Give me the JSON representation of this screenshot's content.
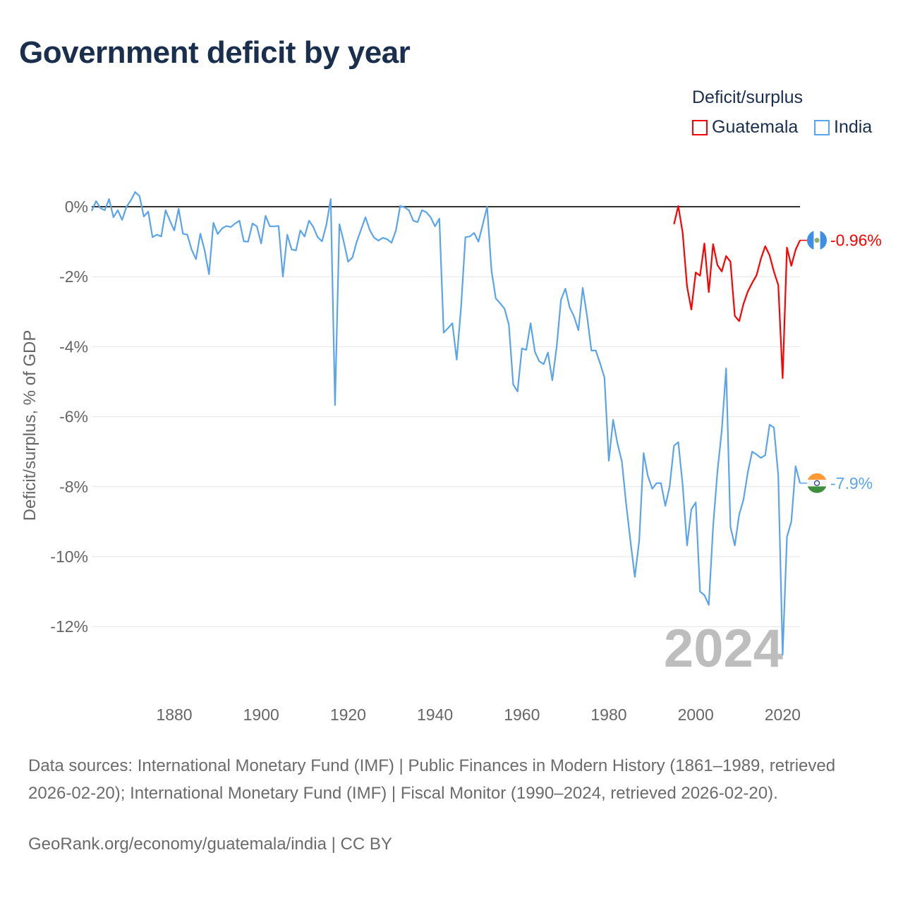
{
  "title": "Government deficit by year",
  "legend": {
    "title": "Deficit/surplus",
    "items": [
      {
        "name": "Guatemala",
        "color": "#ff0000"
      },
      {
        "name": "India",
        "color": "#5ba4ec"
      }
    ]
  },
  "footer": {
    "sources": "Data sources: International Monetary Fund (IMF) | Public Finances in Modern History (1861–1989, retrieved 2026-02-20); International Monetary Fund (IMF) | Fiscal Monitor (1990–2024, retrieved 2026-02-20).",
    "credit": "GeoRank.org/economy/guatemala/india | CC BY"
  },
  "chart_data": {
    "type": "line",
    "title": "Government deficit by year",
    "xlabel": "",
    "ylabel": "Deficit/surplus, % of GDP",
    "xlim": [
      1861,
      2024
    ],
    "ylim": [
      -13,
      0.5
    ],
    "grid": true,
    "legend_position": "top-right",
    "year_label": "2024",
    "x_ticks": [
      1880,
      1900,
      1920,
      1940,
      1960,
      1980,
      2000,
      2020
    ],
    "x_tick_labels": [
      "1880",
      "1900",
      "1920",
      "1940",
      "1960",
      "1980",
      "2000",
      "2020"
    ],
    "y_ticks": [
      0,
      -2,
      -4,
      -6,
      -8,
      -10,
      -12
    ],
    "y_tick_labels": [
      "0%",
      "-2%",
      "-4%",
      "-6%",
      "-8%",
      "-10%",
      "-12%"
    ],
    "series": [
      {
        "name": "Guatemala",
        "color": "#ff0000",
        "end_label": "-0.96%",
        "start_year": 1995,
        "values": [
          -0.5,
          0.02,
          -0.75,
          -2.28,
          -2.94,
          -1.88,
          -1.97,
          -1.05,
          -2.44,
          -1.07,
          -1.67,
          -1.85,
          -1.41,
          -1.57,
          -3.12,
          -3.27,
          -2.78,
          -2.42,
          -2.18,
          -1.96,
          -1.49,
          -1.13,
          -1.39,
          -1.85,
          -2.24,
          -4.9,
          -1.17,
          -1.69,
          -1.23,
          -0.96
        ]
      },
      {
        "name": "India",
        "color": "#5ba4ec",
        "end_label": "-7.9%",
        "start_year": 1861,
        "values": [
          -0.12,
          0.16,
          -0.04,
          -0.1,
          0.22,
          -0.3,
          -0.1,
          -0.38,
          0,
          0.18,
          0.42,
          0.3,
          -0.28,
          -0.14,
          -0.87,
          -0.8,
          -0.85,
          -0.1,
          -0.4,
          -0.68,
          -0.06,
          -0.77,
          -0.8,
          -1.23,
          -1.5,
          -0.77,
          -1.25,
          -1.93,
          -0.46,
          -0.78,
          -0.62,
          -0.55,
          -0.58,
          -0.48,
          -0.4,
          -0.99,
          -1.0,
          -0.48,
          -0.56,
          -1.05,
          -0.26,
          -0.56,
          -0.56,
          -0.55,
          -2.0,
          -0.8,
          -1.22,
          -1.25,
          -0.68,
          -0.85,
          -0.4,
          -0.58,
          -0.87,
          -0.99,
          -0.52,
          0.22,
          -5.67,
          -0.5,
          -1.0,
          -1.57,
          -1.45,
          -1.0,
          -0.65,
          -0.3,
          -0.67,
          -0.89,
          -0.97,
          -0.89,
          -0.93,
          -1.03,
          -0.68,
          0.02,
          -0.02,
          -0.1,
          -0.4,
          -0.44,
          -0.1,
          -0.16,
          -0.3,
          -0.56,
          -0.34,
          -3.6,
          -3.47,
          -3.33,
          -4.37,
          -2.86,
          -0.87,
          -0.85,
          -0.75,
          -1.0,
          -0.5,
          0,
          -1.83,
          -2.62,
          -2.76,
          -2.92,
          -3.37,
          -5.08,
          -5.28,
          -4.05,
          -4.09,
          -3.33,
          -4.15,
          -4.42,
          -4.5,
          -4.17,
          -4.96,
          -4.0,
          -2.66,
          -2.34,
          -2.88,
          -3.14,
          -3.53,
          -2.32,
          -3.13,
          -4.11,
          -4.11,
          -4.48,
          -4.88,
          -7.26,
          -6.09,
          -6.77,
          -7.28,
          -8.5,
          -9.58,
          -10.58,
          -9.54,
          -7.04,
          -7.7,
          -8.06,
          -7.9,
          -7.9,
          -8.55,
          -8.0,
          -6.83,
          -6.73,
          -7.96,
          -9.68,
          -8.65,
          -8.45,
          -11.0,
          -11.1,
          -11.38,
          -9.15,
          -7.56,
          -6.4,
          -4.62,
          -9.15,
          -9.68,
          -8.8,
          -8.37,
          -7.58,
          -7.0,
          -7.08,
          -7.18,
          -7.1,
          -6.23,
          -6.31,
          -7.68,
          -12.8,
          -9.44,
          -9.0,
          -7.42,
          -7.9
        ]
      }
    ]
  }
}
